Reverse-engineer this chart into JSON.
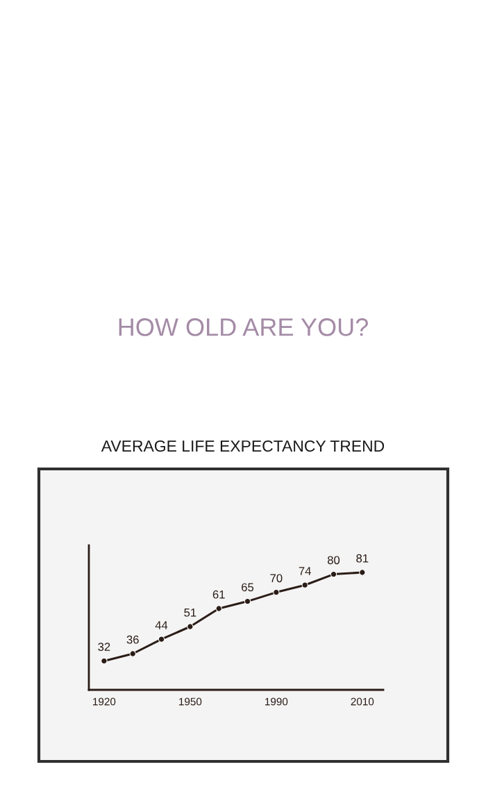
{
  "chart_data": {
    "type": "line",
    "title": "HOW OLD ARE YOU?",
    "subtitle": "AVERAGE LIFE EXPECTANCY TREND",
    "categories": [
      "1920",
      null,
      null,
      "1950",
      null,
      null,
      "1990",
      null,
      null,
      "2010"
    ],
    "series": [
      {
        "color": "#2a1c16",
        "values": [
          32,
          36,
          44,
          51,
          61,
          65,
          70,
          74,
          80,
          81
        ]
      }
    ],
    "ylim": [
      16,
      96
    ],
    "tick_labels": "x",
    "data_labels": true,
    "marker": "circle",
    "line_style": "solid",
    "grid": false
  }
}
